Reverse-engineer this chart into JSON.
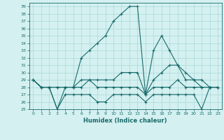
{
  "xlabel": "Humidex (Indice chaleur)",
  "bg_color": "#d4f0f0",
  "grid_color": "#a8d8d8",
  "line_color": "#1a6b6b",
  "xlim": [
    -0.5,
    23.5
  ],
  "ylim": [
    25,
    39.5
  ],
  "xticks": [
    0,
    1,
    2,
    3,
    4,
    5,
    6,
    7,
    8,
    9,
    10,
    11,
    12,
    13,
    14,
    15,
    16,
    17,
    18,
    19,
    20,
    21,
    22,
    23
  ],
  "yticks": [
    25,
    26,
    27,
    28,
    29,
    30,
    31,
    32,
    33,
    34,
    35,
    36,
    37,
    38,
    39
  ],
  "series": [
    [
      29,
      28,
      28,
      25,
      28,
      28,
      32,
      33,
      34,
      35,
      37,
      38,
      39,
      39,
      27,
      33,
      35,
      33,
      31,
      29,
      29,
      28,
      28,
      28
    ],
    [
      29,
      28,
      28,
      28,
      28,
      28,
      29,
      29,
      29,
      29,
      29,
      30,
      30,
      30,
      27,
      29,
      30,
      31,
      31,
      30,
      29,
      29,
      28,
      28
    ],
    [
      29,
      28,
      28,
      28,
      28,
      28,
      28,
      29,
      28,
      28,
      28,
      28,
      28,
      28,
      27,
      28,
      28,
      28,
      29,
      28,
      28,
      28,
      28,
      28
    ],
    [
      29,
      28,
      28,
      25,
      27,
      27,
      27,
      27,
      26,
      26,
      27,
      27,
      27,
      27,
      26,
      27,
      27,
      27,
      27,
      27,
      27,
      25,
      28,
      28
    ]
  ]
}
